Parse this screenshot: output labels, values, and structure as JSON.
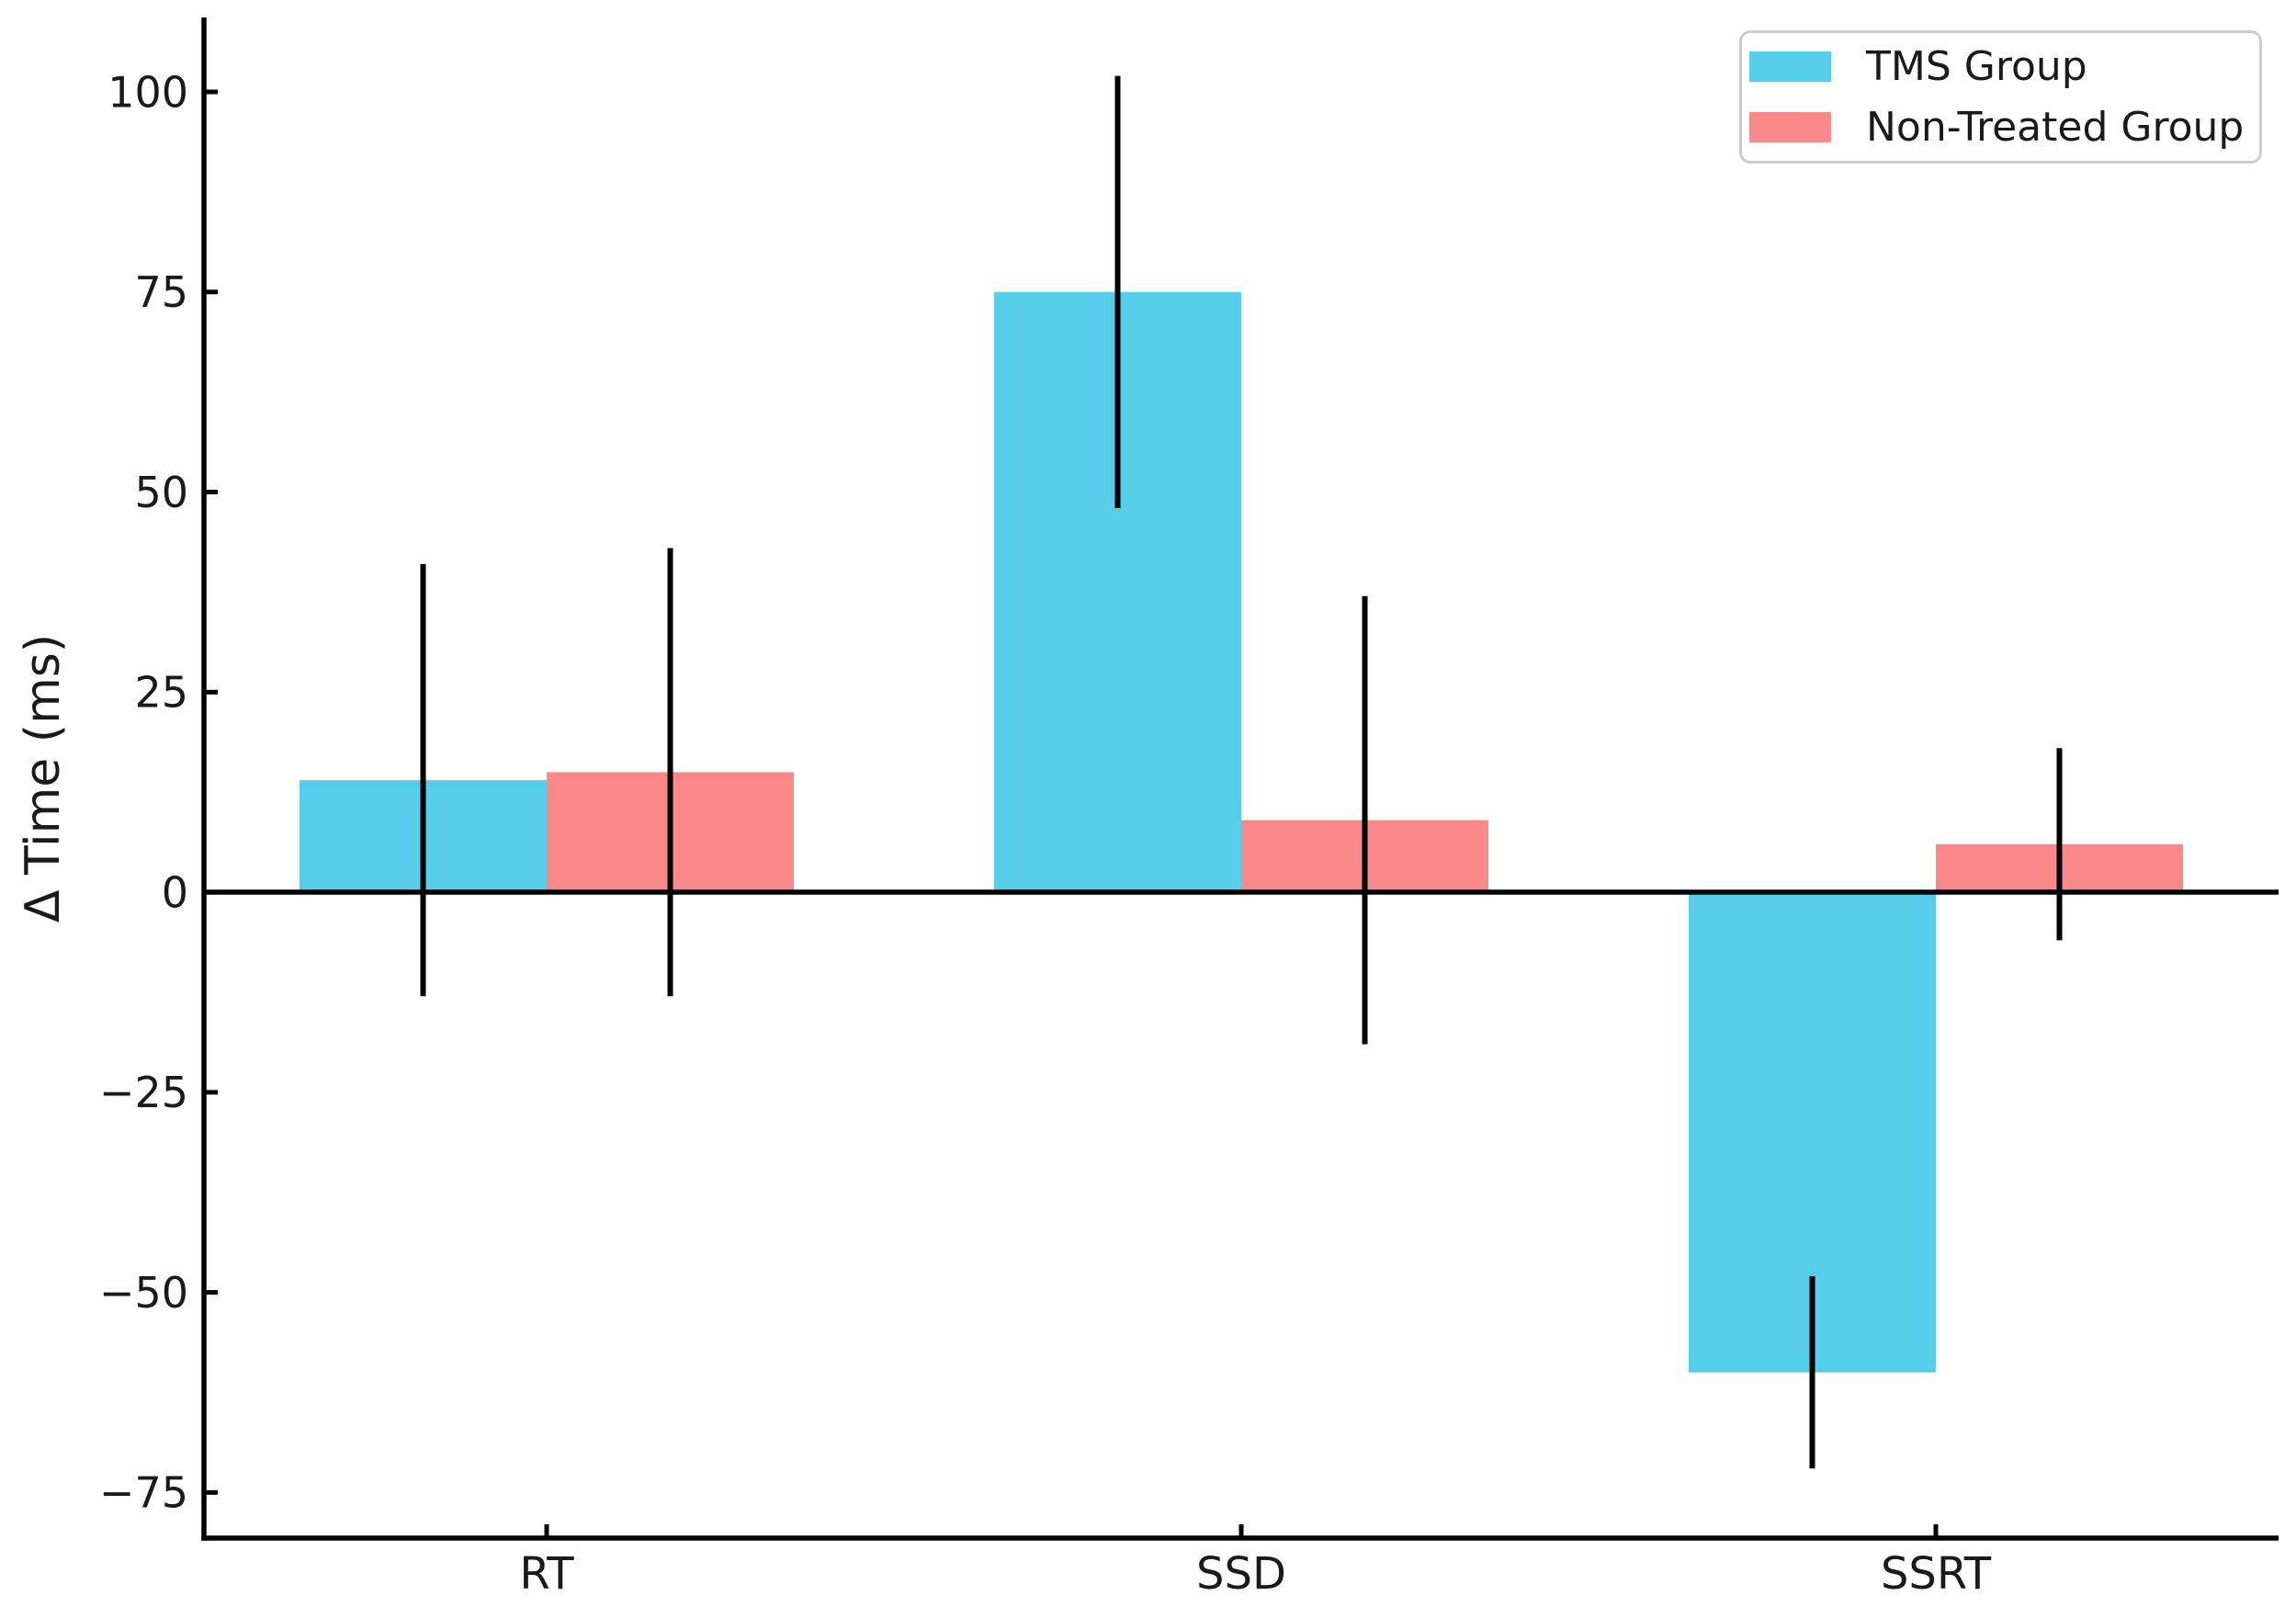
{
  "figure": {
    "background": "#ffffff"
  },
  "chart_data": {
    "type": "bar",
    "title": "",
    "xlabel": "",
    "ylabel": "Δ Time (ms)",
    "categories": [
      "RT",
      "SSD",
      "SSRT"
    ],
    "series": [
      {
        "name": "TMS Group",
        "color": "#56CDE9",
        "values": [
          14,
          75,
          -60
        ],
        "error_bars": [
          27,
          27,
          12
        ]
      },
      {
        "name": "Non-Treated Group",
        "color": "#FB8888",
        "values": [
          15,
          9,
          6
        ],
        "error_bars": [
          28,
          28,
          12
        ]
      }
    ],
    "yticks": [
      {
        "value": -75,
        "label": "−75"
      },
      {
        "value": -50,
        "label": "−50"
      },
      {
        "value": -25,
        "label": "−25"
      },
      {
        "value": 0,
        "label": "0"
      },
      {
        "value": 25,
        "label": "25"
      },
      {
        "value": 50,
        "label": "50"
      },
      {
        "value": 75,
        "label": "75"
      },
      {
        "value": 100,
        "label": "100"
      }
    ],
    "ylim": [
      -80.7,
      109.3
    ],
    "grid": false,
    "zero_line": true,
    "legend": {
      "position": "upper right"
    },
    "colors": {
      "axis": "#000000",
      "error_bar": "#000000",
      "text": "#1a1a1a",
      "legend_border": "#cccccc"
    }
  }
}
